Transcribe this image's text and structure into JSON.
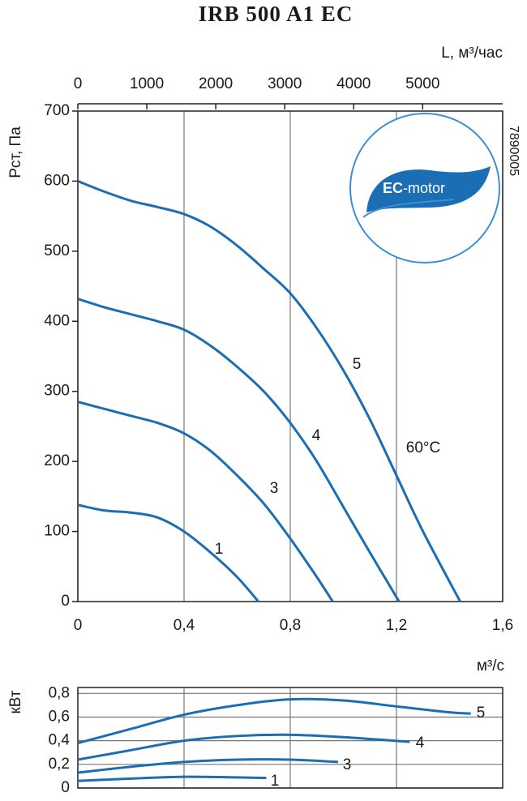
{
  "chart_data": [
    {
      "type": "line",
      "title": "IRB 500 A1 EC",
      "y_label": "Pст, Па",
      "x_label": "м³/с",
      "x2_label": "L, м³/час",
      "xlim": [
        0,
        1.6
      ],
      "xticks": [
        0,
        {
          "value": 0.4,
          "label": "0,4"
        },
        {
          "value": 0.8,
          "label": "0,8"
        },
        {
          "value": 1.2,
          "label": "1,2"
        },
        {
          "value": 1.6,
          "label": "1,6"
        }
      ],
      "ylim": [
        0,
        700
      ],
      "yticks": [
        0,
        100,
        200,
        300,
        400,
        500,
        600,
        700
      ],
      "x2lim": [
        0,
        6160
      ],
      "x2ticks": [
        0,
        1000,
        2000,
        3000,
        4000,
        5000
      ],
      "grid": "x",
      "annotations": [
        "60°C",
        "7890005"
      ],
      "logo_text": [
        "EC",
        "-motor"
      ],
      "series": [
        {
          "name": "1",
          "color": "#1b6db4",
          "x": [
            0,
            0.1,
            0.2,
            0.3,
            0.4,
            0.5,
            0.6,
            0.68
          ],
          "values": [
            138,
            130,
            127,
            120,
            100,
            70,
            35,
            0
          ]
        },
        {
          "name": "3",
          "color": "#1b6db4",
          "x": [
            0,
            0.1,
            0.2,
            0.3,
            0.4,
            0.5,
            0.6,
            0.7,
            0.8,
            0.9,
            0.96
          ],
          "values": [
            285,
            275,
            265,
            255,
            240,
            215,
            180,
            140,
            90,
            35,
            0
          ]
        },
        {
          "name": "4",
          "color": "#1b6db4",
          "x": [
            0,
            0.1,
            0.2,
            0.3,
            0.4,
            0.5,
            0.6,
            0.7,
            0.8,
            0.9,
            1.0,
            1.1,
            1.21
          ],
          "values": [
            432,
            420,
            410,
            400,
            388,
            365,
            335,
            300,
            255,
            200,
            135,
            70,
            0
          ]
        },
        {
          "name": "5",
          "color": "#1b6db4",
          "x": [
            0,
            0.1,
            0.2,
            0.3,
            0.4,
            0.5,
            0.6,
            0.7,
            0.8,
            0.9,
            1.0,
            1.1,
            1.2,
            1.3,
            1.44
          ],
          "values": [
            600,
            585,
            572,
            563,
            553,
            535,
            508,
            475,
            440,
            390,
            330,
            260,
            180,
            100,
            0
          ]
        }
      ]
    },
    {
      "type": "line",
      "y_label": "кВт",
      "xlim": [
        0,
        1.6
      ],
      "xgrid": [
        0.4,
        0.8,
        1.2
      ],
      "ylim": [
        0,
        0.85
      ],
      "yticks": [
        0,
        {
          "value": 0.2,
          "label": "0,2"
        },
        {
          "value": 0.4,
          "label": "0,4"
        },
        {
          "value": 0.6,
          "label": "0,6"
        },
        {
          "value": 0.8,
          "label": "0,8"
        }
      ],
      "grid": "both",
      "series": [
        {
          "name": "1",
          "color": "#1b6db4",
          "x": [
            0,
            0.2,
            0.4,
            0.6,
            0.71
          ],
          "values": [
            0.06,
            0.08,
            0.095,
            0.09,
            0.085
          ]
        },
        {
          "name": "3",
          "color": "#1b6db4",
          "x": [
            0,
            0.2,
            0.4,
            0.6,
            0.8,
            0.98
          ],
          "values": [
            0.13,
            0.18,
            0.22,
            0.24,
            0.24,
            0.22
          ]
        },
        {
          "name": "4",
          "color": "#1b6db4",
          "x": [
            0,
            0.2,
            0.4,
            0.6,
            0.8,
            1.0,
            1.25
          ],
          "values": [
            0.24,
            0.32,
            0.4,
            0.44,
            0.45,
            0.43,
            0.39
          ]
        },
        {
          "name": "5",
          "color": "#1b6db4",
          "x": [
            0,
            0.2,
            0.4,
            0.6,
            0.8,
            1.0,
            1.2,
            1.4,
            1.48
          ],
          "values": [
            0.38,
            0.5,
            0.62,
            0.7,
            0.75,
            0.74,
            0.69,
            0.64,
            0.63
          ]
        }
      ]
    }
  ]
}
